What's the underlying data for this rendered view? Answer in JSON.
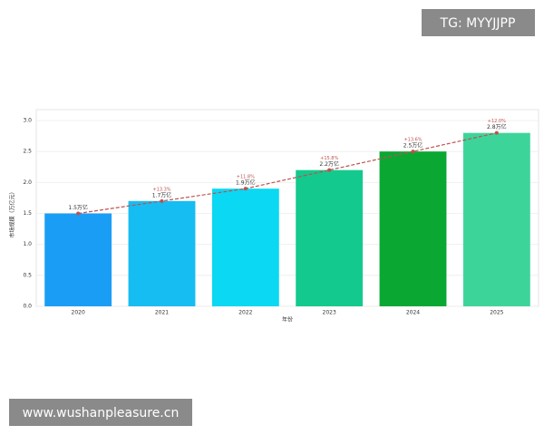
{
  "chart_data": {
    "type": "bar",
    "categories": [
      "2020",
      "2021",
      "2022",
      "2023",
      "2024",
      "2025"
    ],
    "values": [
      1.5,
      1.7,
      1.9,
      2.2,
      2.5,
      2.8
    ],
    "value_labels": [
      "1.5万亿",
      "1.7万亿",
      "1.9万亿",
      "2.2万亿",
      "2.5万亿",
      "2.8万亿"
    ],
    "growth_labels": [
      null,
      "+13.3%",
      "+11.8%",
      "+15.8%",
      "+13.6%",
      "+12.0%"
    ],
    "colors": [
      "#1a9ef5",
      "#16bdf2",
      "#0bd8f2",
      "#14c98e",
      "#0aa833",
      "#3dd49a"
    ],
    "trend_color": "#c0504d",
    "xlabel": "年份",
    "ylabel": "市场规模（万亿元）",
    "ylim": [
      0,
      3.0
    ],
    "yticks": [
      {
        "value": 0,
        "label": "0.0"
      },
      {
        "value": 0.5,
        "label": "0.5"
      },
      {
        "value": 1,
        "label": "1.0"
      },
      {
        "value": 1.5,
        "label": "1.5"
      },
      {
        "value": 2,
        "label": "2.0"
      },
      {
        "value": 2.5,
        "label": "2.5"
      },
      {
        "value": 3,
        "label": "3.0"
      }
    ],
    "grid": true
  },
  "overlays": {
    "top_badge": "TG: MYYJJPP",
    "bottom_badge": "www.wushanpleasure.cn"
  }
}
